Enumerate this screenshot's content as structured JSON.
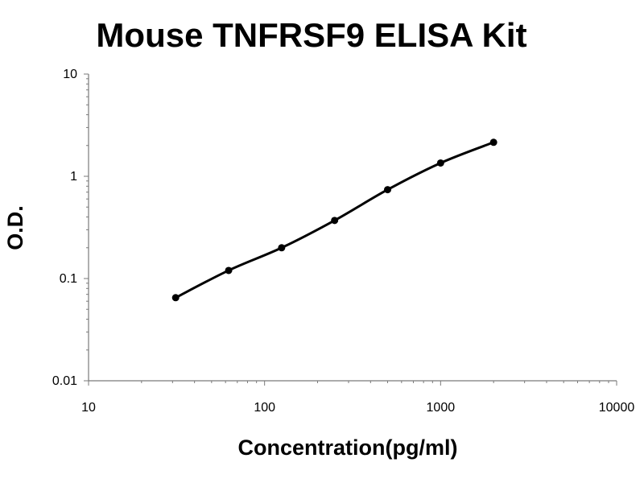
{
  "chart_data": {
    "type": "line",
    "title": "Mouse TNFRSF9 ELISA Kit",
    "xlabel": "Concentration(pg/ml)",
    "ylabel": "O.D.",
    "x_scale": "log",
    "y_scale": "log",
    "xlim": [
      10,
      10000
    ],
    "ylim": [
      0.01,
      10
    ],
    "x_ticks": [
      10,
      100,
      1000,
      10000
    ],
    "x_tick_labels": [
      "10",
      "100",
      "1000",
      "10000"
    ],
    "y_ticks": [
      0.01,
      0.1,
      1,
      10
    ],
    "y_tick_labels": [
      "0.01",
      "0.1",
      "1",
      "10"
    ],
    "grid": false,
    "legend": "none",
    "line_color": "#000000",
    "series": [
      {
        "x": [
          31.25,
          62.5,
          125,
          250,
          500,
          1000,
          2000
        ],
        "y": [
          0.065,
          0.12,
          0.2,
          0.37,
          0.74,
          1.35,
          2.15
        ]
      }
    ]
  }
}
